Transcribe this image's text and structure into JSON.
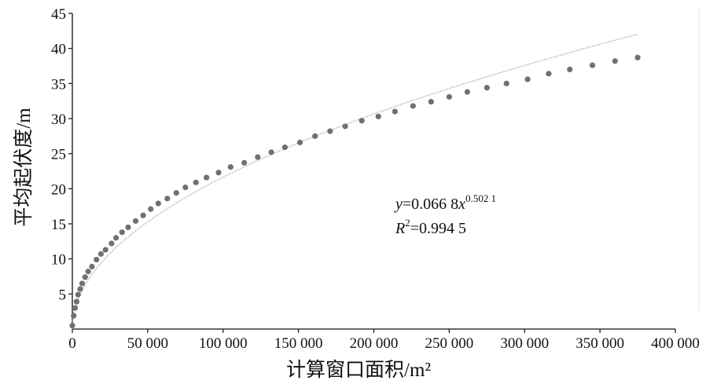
{
  "chart_data": {
    "type": "scatter",
    "xlabel": "计算窗口面积/m²",
    "ylabel": "平均起伏度/m",
    "xlim": [
      0,
      400000
    ],
    "ylim": [
      0,
      45
    ],
    "x_ticks": [
      "0",
      "50 000",
      "100 000",
      "150 000",
      "200 000",
      "250 000",
      "300 000",
      "350 000",
      "400 000"
    ],
    "y_ticks": [
      "5",
      "10",
      "15",
      "20",
      "25",
      "30",
      "35",
      "40",
      "45"
    ],
    "grid": false,
    "series": [
      {
        "kind": "points",
        "color": "#707070",
        "x": [
          0,
          900,
          1800,
          2800,
          3800,
          5200,
          6500,
          8500,
          10500,
          13000,
          16000,
          19000,
          22000,
          26000,
          29000,
          33000,
          37000,
          42000,
          47000,
          52000,
          57000,
          63000,
          69000,
          75000,
          82000,
          89000,
          97000,
          105000,
          114000,
          123000,
          132000,
          141000,
          151000,
          161000,
          171000,
          181000,
          192000,
          203000,
          214000,
          226000,
          238000,
          250000,
          262000,
          275000,
          288000,
          302000,
          316000,
          330000,
          345000,
          360000,
          375000
        ],
        "y": [
          0.5,
          1.9,
          3.0,
          3.9,
          4.9,
          5.7,
          6.5,
          7.4,
          8.2,
          8.9,
          9.9,
          10.7,
          11.3,
          12.2,
          13.0,
          13.8,
          14.5,
          15.4,
          16.2,
          17.1,
          17.9,
          18.6,
          19.4,
          20.2,
          20.9,
          21.6,
          22.3,
          23.1,
          23.7,
          24.5,
          25.2,
          25.9,
          26.6,
          27.5,
          28.2,
          28.9,
          29.7,
          30.3,
          31.0,
          31.8,
          32.4,
          33.1,
          33.8,
          34.4,
          35.0,
          35.6,
          36.4,
          37.0,
          37.6,
          38.2,
          38.7
        ]
      },
      {
        "kind": "fit",
        "color": "#b4b4b4",
        "coef": 0.0668,
        "exponent": 0.5021,
        "x_range": [
          0,
          375000
        ]
      }
    ],
    "equation": {
      "y_label": "y",
      "y_value": "=0.066 8",
      "x_label": "x",
      "x_exponent": "0.502 1",
      "r2_label": "R",
      "r2_exponent": "2",
      "r2_value": "=0.994 5"
    }
  }
}
